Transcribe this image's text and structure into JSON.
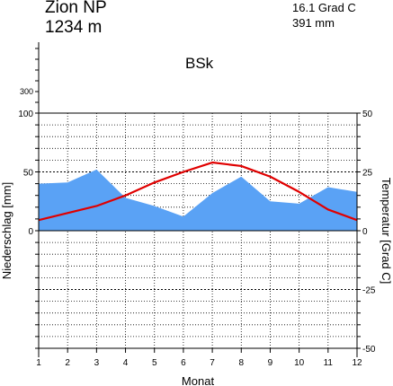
{
  "header": {
    "station": "Zion NP",
    "elevation": "1234 m",
    "mean_temperature": "16.1 Grad C",
    "annual_precipitation": "391 mm",
    "climate_class": "BSk"
  },
  "chart_data": {
    "type": "line",
    "xlabel": "Monat",
    "ylabel_left": "Niederschlag [mm]",
    "ylabel_right": "Temperatur [Grad C]",
    "x": [
      1,
      2,
      3,
      4,
      5,
      6,
      7,
      8,
      9,
      10,
      11,
      12
    ],
    "x_tick_labels": [
      "1",
      "2",
      "3",
      "4",
      "5",
      "6",
      "7",
      "8",
      "9",
      "10",
      "11",
      "12"
    ],
    "precip_ylim": [
      -200,
      400
    ],
    "precip_tick_labels": [
      "0",
      "50",
      "100",
      "300"
    ],
    "temp_ylim": [
      -50,
      50
    ],
    "temp_tick_labels": [
      "50",
      "25",
      "0",
      "-25",
      "-50"
    ],
    "grid": true,
    "series": [
      {
        "name": "Niederschlag",
        "kind": "area",
        "axis": "left",
        "color": "#5aa2f5",
        "values": [
          40,
          41,
          52,
          28,
          21,
          12,
          32,
          46,
          25,
          23,
          37,
          33
        ]
      },
      {
        "name": "Temperatur",
        "kind": "line",
        "axis": "right",
        "color": "#e00000",
        "values": [
          4.5,
          7.5,
          10.5,
          15,
          20.5,
          25,
          29,
          27.5,
          23,
          16.5,
          9,
          4.5
        ]
      }
    ]
  }
}
